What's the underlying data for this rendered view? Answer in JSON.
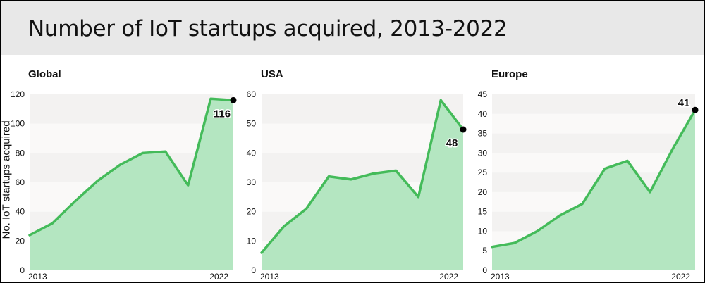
{
  "title": "Number of IoT startups acquired, 2013-2022",
  "ylabel": "No. IoT startups acquired",
  "colors": {
    "line": "#44bb5a",
    "fill": "#b4e6c1",
    "band_dark": "#f3f2f1",
    "band_light": "#faf9f8",
    "dot": "#000000"
  },
  "chart_data": [
    {
      "type": "area",
      "title": "Global",
      "x": [
        2013,
        2014,
        2015,
        2016,
        2017,
        2018,
        2019,
        2020,
        2021,
        2022
      ],
      "x_tick_labels": [
        "2013",
        "2022"
      ],
      "values": [
        24,
        32,
        47,
        61,
        72,
        80,
        81,
        58,
        117,
        116
      ],
      "ylim": [
        0,
        120
      ],
      "yticks": [
        0,
        20,
        40,
        60,
        80,
        100,
        120
      ],
      "end_label": "116"
    },
    {
      "type": "area",
      "title": "USA",
      "x": [
        2013,
        2014,
        2015,
        2016,
        2017,
        2018,
        2019,
        2020,
        2021,
        2022
      ],
      "x_tick_labels": [
        "2013",
        "2022"
      ],
      "values": [
        6,
        15,
        21,
        32,
        31,
        33,
        34,
        25,
        58,
        48
      ],
      "ylim": [
        0,
        60
      ],
      "yticks": [
        0,
        10,
        20,
        30,
        40,
        50,
        60
      ],
      "end_label": "48"
    },
    {
      "type": "area",
      "title": "Europe",
      "x": [
        2013,
        2014,
        2015,
        2016,
        2017,
        2018,
        2019,
        2020,
        2021,
        2022
      ],
      "x_tick_labels": [
        "2013",
        "2022"
      ],
      "values": [
        6,
        7,
        10,
        14,
        17,
        26,
        28,
        20,
        31,
        41
      ],
      "ylim": [
        0,
        45
      ],
      "yticks": [
        0,
        5,
        10,
        15,
        20,
        25,
        30,
        35,
        40,
        45
      ],
      "end_label": "41"
    }
  ]
}
